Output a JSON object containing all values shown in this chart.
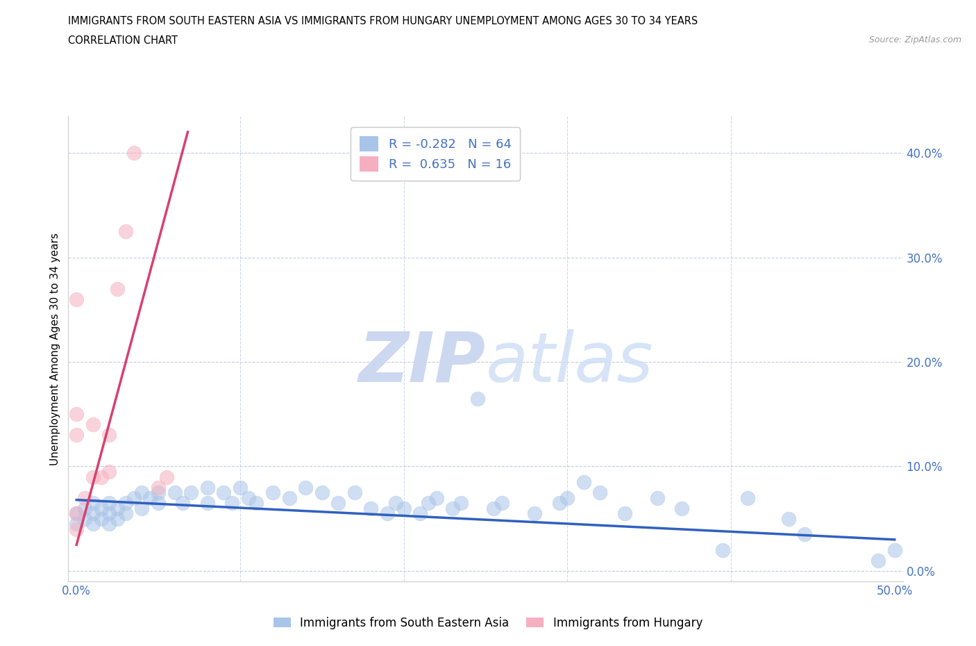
{
  "title_line1": "IMMIGRANTS FROM SOUTH EASTERN ASIA VS IMMIGRANTS FROM HUNGARY UNEMPLOYMENT AMONG AGES 30 TO 34 YEARS",
  "title_line2": "CORRELATION CHART",
  "source_text": "Source: ZipAtlas.com",
  "ylabel": "Unemployment Among Ages 30 to 34 years",
  "xlim": [
    -0.005,
    0.505
  ],
  "ylim": [
    -0.01,
    0.435
  ],
  "xticks": [
    0.0,
    0.1,
    0.2,
    0.3,
    0.4,
    0.5
  ],
  "yticks": [
    0.0,
    0.1,
    0.2,
    0.3,
    0.4
  ],
  "xticklabels": [
    "0.0%",
    "",
    "",
    "",
    "",
    "50.0%"
  ],
  "yticklabels": [
    "0.0%",
    "10.0%",
    "20.0%",
    "30.0%",
    "40.0%"
  ],
  "legend_r_blue": "-0.282",
  "legend_n_blue": "64",
  "legend_r_pink": "0.635",
  "legend_n_pink": "16",
  "legend_label_blue": "Immigrants from South Eastern Asia",
  "legend_label_pink": "Immigrants from Hungary",
  "blue_color": "#a8c4e8",
  "pink_color": "#f5afc0",
  "line_blue_color": "#3060c0",
  "line_pink_color": "#d84070",
  "watermark_zip": "ZIP",
  "watermark_atlas": "atlas",
  "watermark_color": "#ccd8f0",
  "blue_scatter_x": [
    0.0,
    0.0,
    0.005,
    0.005,
    0.01,
    0.01,
    0.01,
    0.015,
    0.015,
    0.02,
    0.02,
    0.02,
    0.025,
    0.025,
    0.03,
    0.03,
    0.035,
    0.04,
    0.04,
    0.045,
    0.05,
    0.05,
    0.06,
    0.065,
    0.07,
    0.08,
    0.08,
    0.09,
    0.095,
    0.1,
    0.105,
    0.11,
    0.12,
    0.13,
    0.14,
    0.15,
    0.16,
    0.17,
    0.18,
    0.19,
    0.195,
    0.2,
    0.21,
    0.215,
    0.22,
    0.23,
    0.235,
    0.245,
    0.255,
    0.26,
    0.28,
    0.295,
    0.3,
    0.31,
    0.32,
    0.335,
    0.355,
    0.37,
    0.395,
    0.41,
    0.435,
    0.445,
    0.49,
    0.5
  ],
  "blue_scatter_y": [
    0.055,
    0.045,
    0.06,
    0.05,
    0.055,
    0.065,
    0.045,
    0.06,
    0.05,
    0.065,
    0.055,
    0.045,
    0.06,
    0.05,
    0.065,
    0.055,
    0.07,
    0.075,
    0.06,
    0.07,
    0.065,
    0.075,
    0.075,
    0.065,
    0.075,
    0.08,
    0.065,
    0.075,
    0.065,
    0.08,
    0.07,
    0.065,
    0.075,
    0.07,
    0.08,
    0.075,
    0.065,
    0.075,
    0.06,
    0.055,
    0.065,
    0.06,
    0.055,
    0.065,
    0.07,
    0.06,
    0.065,
    0.165,
    0.06,
    0.065,
    0.055,
    0.065,
    0.07,
    0.085,
    0.075,
    0.055,
    0.07,
    0.06,
    0.02,
    0.07,
    0.05,
    0.035,
    0.01,
    0.02
  ],
  "pink_scatter_x": [
    0.0,
    0.0,
    0.0,
    0.0,
    0.0,
    0.005,
    0.01,
    0.01,
    0.015,
    0.02,
    0.02,
    0.025,
    0.03,
    0.035,
    0.05,
    0.055
  ],
  "pink_scatter_y": [
    0.055,
    0.04,
    0.13,
    0.15,
    0.26,
    0.07,
    0.09,
    0.14,
    0.09,
    0.095,
    0.13,
    0.27,
    0.325,
    0.4,
    0.08,
    0.09
  ],
  "blue_trend_x": [
    0.0,
    0.5
  ],
  "blue_trend_y": [
    0.068,
    0.03
  ],
  "pink_trend_x": [
    0.0,
    0.068
  ],
  "pink_trend_y": [
    0.025,
    0.42
  ]
}
